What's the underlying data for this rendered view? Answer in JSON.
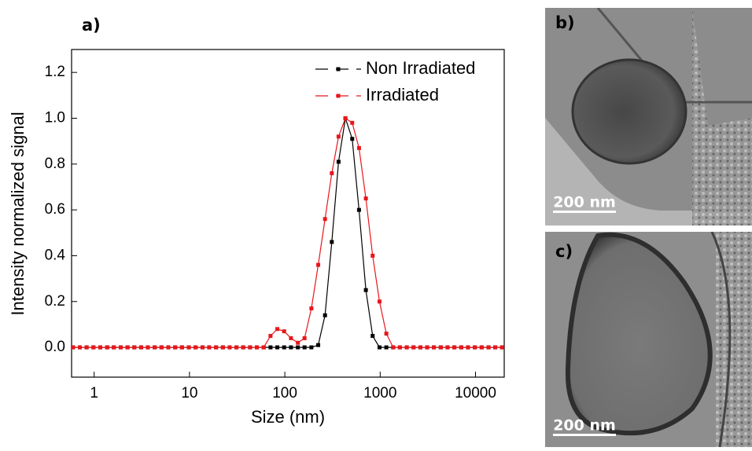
{
  "chart_data": {
    "type": "line",
    "panel_label": "a)",
    "xlabel": "Size (nm)",
    "ylabel": "Intensity normalized signal",
    "x_scale": "log",
    "xlim": [
      0.58,
      20000
    ],
    "xticks": [
      1,
      10,
      100,
      1000,
      10000
    ],
    "ylim": [
      -0.13,
      1.3
    ],
    "yticks": [
      {
        "value": 0,
        "label": "0.0"
      },
      {
        "value": 0.2,
        "label": "0.2"
      },
      {
        "value": 0.4,
        "label": "0.4"
      },
      {
        "value": 0.6,
        "label": "0.6"
      },
      {
        "value": 0.8,
        "label": "0.8"
      },
      {
        "value": 1,
        "label": "1.0"
      },
      {
        "value": 1.2,
        "label": "1.2"
      }
    ],
    "legend": "upper right",
    "x": [
      0.6,
      0.708,
      0.834,
      0.984,
      1.16,
      1.37,
      1.61,
      1.9,
      2.24,
      2.64,
      3.11,
      3.66,
      4.32,
      5.09,
      6.0,
      7.08,
      8.34,
      9.84,
      11.6,
      13.7,
      16.1,
      19.0,
      22.4,
      26.4,
      31.1,
      36.6,
      43.2,
      50.9,
      60.0,
      70.8,
      83.4,
      98.4,
      116,
      137,
      161,
      190,
      224,
      264,
      311,
      366,
      432,
      509,
      600,
      708,
      834,
      984,
      1160,
      1370,
      1610,
      1900,
      2240,
      2640,
      3110,
      3660,
      4320,
      5090,
      6000,
      7080,
      8340,
      9840,
      11600,
      13700,
      16100,
      19000
    ],
    "series": [
      {
        "name": "Non Irradiated",
        "color": "#000000",
        "values": [
          0,
          0,
          0,
          0,
          0,
          0,
          0,
          0,
          0,
          0,
          0,
          0,
          0,
          0,
          0,
          0,
          0,
          0,
          0,
          0,
          0,
          0,
          0,
          0,
          0,
          0,
          0,
          0,
          0,
          0,
          0,
          0,
          0,
          0,
          0,
          0,
          0.01,
          0.14,
          0.46,
          0.81,
          1.0,
          0.91,
          0.6,
          0.25,
          0.05,
          0,
          0,
          0,
          0,
          0,
          0,
          0,
          0,
          0,
          0,
          0,
          0,
          0,
          0,
          0,
          0,
          0,
          0,
          0
        ]
      },
      {
        "name": "Irradiated",
        "color": "#e8161b",
        "values": [
          0,
          0,
          0,
          0,
          0,
          0,
          0,
          0,
          0,
          0,
          0,
          0,
          0,
          0,
          0,
          0,
          0,
          0,
          0,
          0,
          0,
          0,
          0,
          0,
          0,
          0,
          0,
          0,
          0,
          0.05,
          0.08,
          0.07,
          0.04,
          0.02,
          0.04,
          0.17,
          0.36,
          0.56,
          0.76,
          0.92,
          1.0,
          0.98,
          0.87,
          0.65,
          0.4,
          0.2,
          0.06,
          0,
          0,
          0,
          0,
          0,
          0,
          0,
          0,
          0,
          0,
          0,
          0,
          0,
          0,
          0,
          0,
          0
        ]
      }
    ]
  },
  "images": [
    {
      "label": "b)",
      "scale_bar": "200 nm"
    },
    {
      "label": "c)",
      "scale_bar": "200 nm"
    }
  ]
}
